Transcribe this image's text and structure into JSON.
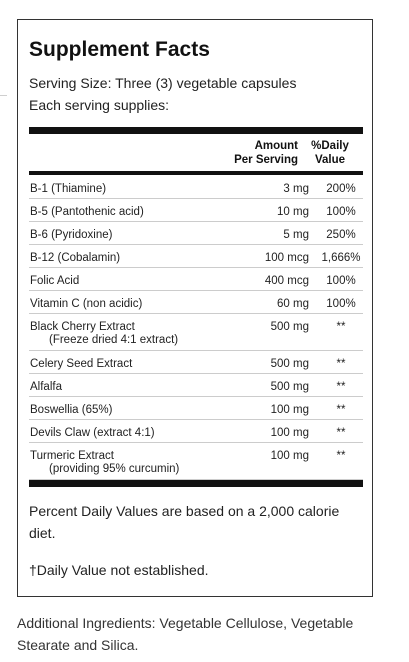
{
  "title": "Supplement Facts",
  "serving_size": "Serving Size: Three (3) vegetable capsules",
  "each_serving": "Each serving supplies:",
  "header": {
    "amount_line1": "Amount",
    "amount_line2": "Per Serving",
    "dv_line1": "%Daily",
    "dv_line2": "Value"
  },
  "rows": [
    {
      "name": "B-1 (Thiamine)",
      "sub": "",
      "amount": "3 mg",
      "dv": "200%"
    },
    {
      "name": "B-5 (Pantothenic acid)",
      "sub": "",
      "amount": "10 mg",
      "dv": "100%"
    },
    {
      "name": "B-6 (Pyridoxine)",
      "sub": "",
      "amount": "5 mg",
      "dv": "250%"
    },
    {
      "name": "B-12 (Cobalamin)",
      "sub": "",
      "amount": "100 mcg",
      "dv": "1,666%"
    },
    {
      "name": "Folic Acid",
      "sub": "",
      "amount": "400 mcg",
      "dv": "100%"
    },
    {
      "name": "Vitamin C (non acidic)",
      "sub": "",
      "amount": "60 mg",
      "dv": "100%"
    },
    {
      "name": "Black Cherry Extract",
      "sub": "(Freeze dried 4:1 extract)",
      "amount": "500 mg",
      "dv": "**"
    },
    {
      "name": "Celery Seed Extract",
      "sub": "",
      "amount": "500 mg",
      "dv": "**"
    },
    {
      "name": "Alfalfa",
      "sub": "",
      "amount": "500 mg",
      "dv": "**"
    },
    {
      "name": "Boswellia (65%)",
      "sub": "",
      "amount": "100 mg",
      "dv": "**"
    },
    {
      "name": "Devils Claw (extract 4:1)",
      "sub": "",
      "amount": "100 mg",
      "dv": "**"
    },
    {
      "name": "Turmeric Extract",
      "sub": "(providing 95% curcumin)",
      "amount": "100 mg",
      "dv": "**"
    }
  ],
  "footnote_percent": "Percent Daily Values are based on a 2,000 calorie diet.",
  "footnote_dagger": "†Daily Value not established.",
  "additional_ingredients": "Additional Ingredients: Vegetable Cellulose, Vegetable Stearate and Silica."
}
